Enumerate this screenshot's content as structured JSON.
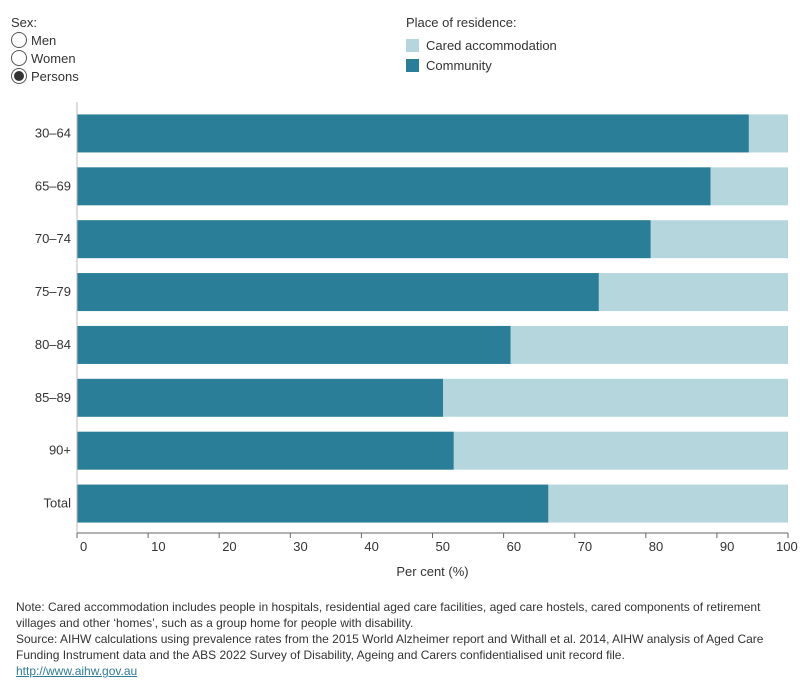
{
  "filters": {
    "sex_label": "Sex:",
    "options": [
      {
        "label": "Men",
        "selected": false
      },
      {
        "label": "Women",
        "selected": false
      },
      {
        "label": "Persons",
        "selected": true
      }
    ]
  },
  "legend": {
    "title": "Place of residence:",
    "items": [
      {
        "label": "Cared accommodation",
        "color": "#b6d6de"
      },
      {
        "label": "Community",
        "color": "#2a7e98"
      }
    ]
  },
  "chart_data": {
    "type": "bar",
    "orientation": "horizontal",
    "stacked": true,
    "categories": [
      "30–64",
      "65–69",
      "70–74",
      "75–79",
      "80–84",
      "85–89",
      "90+",
      "Total"
    ],
    "series": [
      {
        "name": "Community",
        "color": "#2a7e98",
        "values": [
          94.5,
          89.1,
          80.7,
          73.4,
          61.0,
          51.5,
          53.0,
          66.3
        ]
      },
      {
        "name": "Cared accommodation",
        "color": "#b6d6de",
        "values": [
          5.5,
          10.9,
          19.3,
          26.6,
          39.0,
          48.5,
          47.0,
          33.7
        ]
      }
    ],
    "xlabel": "Per cent (%)",
    "ylabel": "",
    "xlim": [
      0,
      100
    ],
    "xticks": [
      0,
      10,
      20,
      30,
      40,
      50,
      60,
      70,
      80,
      90,
      100
    ],
    "grid": false
  },
  "notes": {
    "note": "Note: Cared accommodation includes people in hospitals, residential aged care facilities, aged care hostels, cared components of retirement villages and other ‘homes’, such as a group home for people with disability.",
    "source": "Source: AIHW calculations using prevalence rates from the 2015 World Alzheimer report and Withall et al. 2014, AIHW analysis of Aged Care Funding Instrument data and the ABS 2022 Survey of Disability, Ageing and Carers confidentialised unit record file.",
    "link": "http://www.aihw.gov.au"
  }
}
